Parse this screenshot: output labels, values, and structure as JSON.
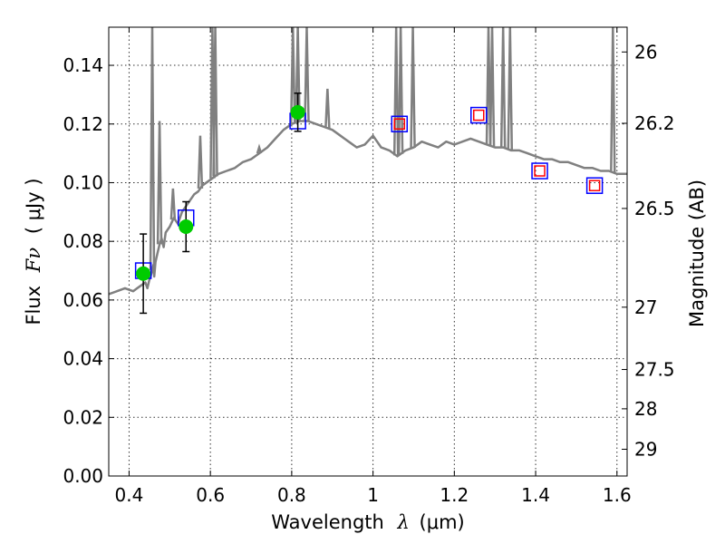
{
  "chart_data": {
    "type": "line",
    "title": "",
    "xlabel": "Wavelength",
    "xlabel_symbol": "λ",
    "xlabel_unit": "(μm)",
    "ylabel": "Flux",
    "ylabel_symbol": "Fν",
    "ylabel_unit": "( μJy )",
    "y2label": "Magnitude (AB)",
    "xlim": [
      0.35,
      1.625
    ],
    "ylim": [
      0.0,
      0.153
    ],
    "grid": true,
    "x_ticks": [
      {
        "value": 0.4,
        "label": "0.4"
      },
      {
        "value": 0.6,
        "label": "0.6"
      },
      {
        "value": 0.8,
        "label": "0.8"
      },
      {
        "value": 1.0,
        "label": "1"
      },
      {
        "value": 1.2,
        "label": "1.2"
      },
      {
        "value": 1.4,
        "label": "1.4"
      },
      {
        "value": 1.6,
        "label": "1.6"
      }
    ],
    "y_ticks": [
      {
        "value": 0.0,
        "label": "0.00"
      },
      {
        "value": 0.02,
        "label": "0.02"
      },
      {
        "value": 0.04,
        "label": "0.04"
      },
      {
        "value": 0.06,
        "label": "0.06"
      },
      {
        "value": 0.08,
        "label": "0.08"
      },
      {
        "value": 0.1,
        "label": "0.10"
      },
      {
        "value": 0.12,
        "label": "0.12"
      },
      {
        "value": 0.14,
        "label": "0.14"
      }
    ],
    "y2_ticks": [
      {
        "value": 26,
        "label": "26"
      },
      {
        "value": 26.2,
        "label": "26.2"
      },
      {
        "value": 26.5,
        "label": "26.5"
      },
      {
        "value": 27,
        "label": "27"
      },
      {
        "value": 27.5,
        "label": "27.5"
      },
      {
        "value": 28,
        "label": "28"
      },
      {
        "value": 29,
        "label": "29"
      }
    ],
    "series": [
      {
        "name": "model spectrum",
        "kind": "line",
        "color": "#808080",
        "x": [
          0.35,
          0.37,
          0.39,
          0.41,
          0.42,
          0.43,
          0.44,
          0.445,
          0.45,
          0.455,
          0.46,
          0.462,
          0.465,
          0.47,
          0.475,
          0.48,
          0.485,
          0.49,
          0.5,
          0.51,
          0.52,
          0.53,
          0.54,
          0.55,
          0.56,
          0.57,
          0.58,
          0.6,
          0.62,
          0.64,
          0.66,
          0.68,
          0.7,
          0.72,
          0.74,
          0.76,
          0.78,
          0.8,
          0.82,
          0.84,
          0.86,
          0.88,
          0.9,
          0.92,
          0.94,
          0.96,
          0.98,
          1.0,
          1.02,
          1.04,
          1.06,
          1.08,
          1.1,
          1.12,
          1.14,
          1.16,
          1.18,
          1.2,
          1.22,
          1.24,
          1.26,
          1.28,
          1.3,
          1.32,
          1.34,
          1.36,
          1.38,
          1.4,
          1.42,
          1.44,
          1.46,
          1.48,
          1.5,
          1.52,
          1.54,
          1.56,
          1.58,
          1.6,
          1.625
        ],
        "y": [
          0.062,
          0.063,
          0.064,
          0.063,
          0.064,
          0.065,
          0.066,
          0.064,
          0.067,
          0.069,
          0.072,
          0.068,
          0.073,
          0.076,
          0.079,
          0.081,
          0.078,
          0.083,
          0.085,
          0.088,
          0.086,
          0.09,
          0.092,
          0.094,
          0.096,
          0.097,
          0.099,
          0.101,
          0.103,
          0.104,
          0.105,
          0.107,
          0.108,
          0.11,
          0.112,
          0.115,
          0.118,
          0.12,
          0.121,
          0.121,
          0.12,
          0.119,
          0.118,
          0.116,
          0.114,
          0.112,
          0.113,
          0.116,
          0.112,
          0.111,
          0.109,
          0.111,
          0.112,
          0.114,
          0.113,
          0.112,
          0.114,
          0.113,
          0.114,
          0.115,
          0.114,
          0.113,
          0.112,
          0.112,
          0.111,
          0.111,
          0.11,
          0.109,
          0.108,
          0.108,
          0.107,
          0.107,
          0.106,
          0.105,
          0.105,
          0.104,
          0.104,
          0.103,
          0.103
        ]
      },
      {
        "name": "spectrum emission spikes",
        "kind": "spikes",
        "color": "#808080",
        "x": [
          0.457,
          0.475,
          0.508,
          0.575,
          0.605,
          0.612,
          0.72,
          0.803,
          0.815,
          0.837,
          0.888,
          1.057,
          1.068,
          1.098,
          1.284,
          1.293,
          1.32,
          1.337,
          1.59
        ],
        "y": [
          0.153,
          0.121,
          0.098,
          0.116,
          0.153,
          0.153,
          0.112,
          0.153,
          0.153,
          0.153,
          0.132,
          0.153,
          0.153,
          0.153,
          0.153,
          0.153,
          0.153,
          0.153,
          0.153
        ]
      },
      {
        "name": "model photometry",
        "kind": "markers",
        "marker": "open-square",
        "color": "#0000ff",
        "x": [
          0.435,
          0.54,
          0.815,
          1.065,
          1.26,
          1.41,
          1.545
        ],
        "y": [
          0.07,
          0.088,
          0.121,
          0.12,
          0.123,
          0.104,
          0.099
        ]
      },
      {
        "name": "photometry (small)",
        "kind": "markers",
        "marker": "open-square",
        "color": "#ff0000",
        "x": [
          1.065,
          1.26,
          1.41,
          1.545
        ],
        "y": [
          0.12,
          0.123,
          0.104,
          0.099
        ]
      },
      {
        "name": "observed photometry",
        "kind": "markers",
        "marker": "filled-circle",
        "color": "#00cc00",
        "x": [
          0.435,
          0.54,
          0.815
        ],
        "y": [
          0.069,
          0.085,
          0.124
        ],
        "yerr": [
          0.0135,
          0.0085,
          0.0065
        ]
      }
    ]
  }
}
